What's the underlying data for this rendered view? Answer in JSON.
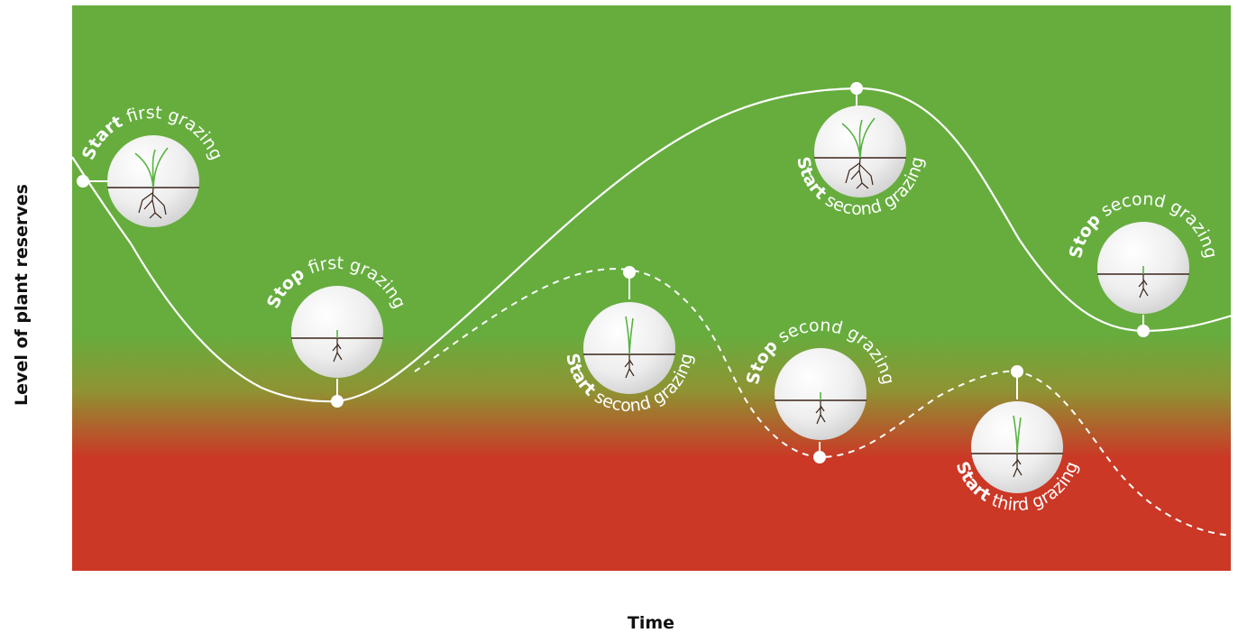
{
  "axes": {
    "x_label": "Time",
    "y_label": "Level of plant reserves"
  },
  "colors": {
    "high": "#66ad3e",
    "mid": "#8e9433",
    "low": "#cb3826",
    "line": "#ffffff",
    "soil": "#3a2418",
    "shoot": "#58b342"
  },
  "events": [
    {
      "id": "start-1",
      "action": "Start",
      "rest": " first grazing",
      "plant": "tall"
    },
    {
      "id": "stop-1",
      "action": "Stop",
      "rest": " first grazing",
      "plant": "short"
    },
    {
      "id": "start-2-solid",
      "action": "Start",
      "rest": " second grazing",
      "plant": "tall"
    },
    {
      "id": "stop-2-solid",
      "action": "Stop",
      "rest": " second grazing",
      "plant": "short"
    },
    {
      "id": "start-2-dashed",
      "action": "Start",
      "rest": " second grazing",
      "plant": "medium"
    },
    {
      "id": "stop-2-dashed",
      "action": "Stop",
      "rest": " second grazing",
      "plant": "short"
    },
    {
      "id": "start-3-dashed",
      "action": "Start",
      "rest": " third grazing",
      "plant": "medium"
    }
  ]
}
